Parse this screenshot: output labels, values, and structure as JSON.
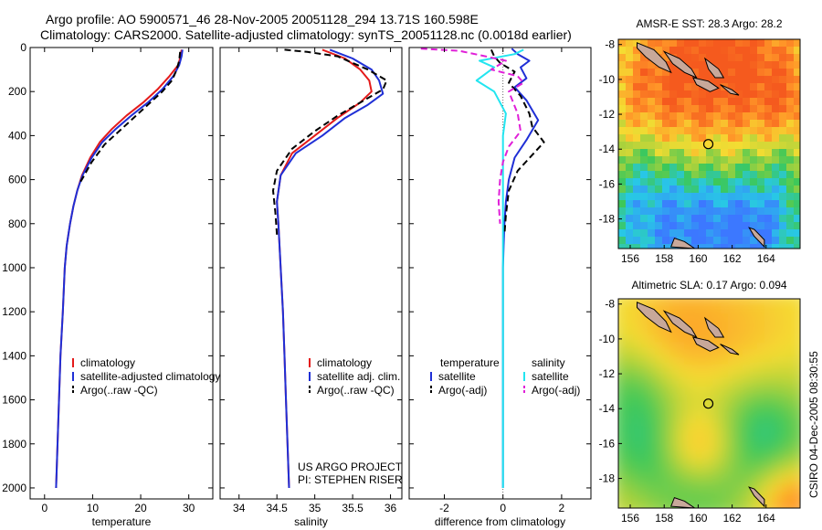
{
  "header": {
    "line1": "Argo profile: AO 5900571_46 28-Nov-2005 20051128_294 13.71S 160.598E",
    "line2": "Climatology: CARS2000. Satellite-adjusted climatology: synTS_20051128.nc (0.0018d earlier)"
  },
  "side_text": "CSIRO 04-Dec-2005 08:30:55",
  "colors": {
    "clim": "#e41a1a",
    "sat": "#1f2fd6",
    "argo": "#000000",
    "cyan": "#22e5f0",
    "magenta": "#e020d8"
  },
  "chart_data": [
    {
      "type": "line",
      "id": "temperature",
      "xlabel": "temperature",
      "xlim": [
        -3,
        35
      ],
      "xticks": [
        0,
        10,
        20,
        30
      ],
      "ylim": [
        2050,
        0
      ],
      "yticks": [
        0,
        200,
        400,
        600,
        800,
        1000,
        1200,
        1400,
        1600,
        1800,
        2000
      ],
      "legend": {
        "position": "lower-center",
        "entries": [
          "climatology",
          "satellite-adjusted climatology",
          "Argo(..raw -QC)"
        ]
      },
      "series": [
        {
          "name": "climatology",
          "color": "clim",
          "dash": false,
          "points": [
            [
              28.5,
              10
            ],
            [
              28.3,
              40
            ],
            [
              27.8,
              80
            ],
            [
              26.0,
              130
            ],
            [
              23.5,
              190
            ],
            [
              20.5,
              250
            ],
            [
              17.0,
              310
            ],
            [
              14.0,
              370
            ],
            [
              11.5,
              430
            ],
            [
              9.5,
              500
            ],
            [
              7.8,
              580
            ],
            [
              6.8,
              650
            ],
            [
              6.0,
              720
            ],
            [
              5.3,
              800
            ],
            [
              4.6,
              900
            ],
            [
              4.2,
              1000
            ],
            [
              3.8,
              1200
            ],
            [
              3.3,
              1400
            ],
            [
              3.0,
              1600
            ],
            [
              2.7,
              1800
            ],
            [
              2.4,
              2000
            ]
          ]
        },
        {
          "name": "satellite-adjusted climatology",
          "color": "sat",
          "dash": false,
          "points": [
            [
              28.7,
              10
            ],
            [
              28.5,
              40
            ],
            [
              28.0,
              80
            ],
            [
              26.8,
              130
            ],
            [
              24.5,
              190
            ],
            [
              21.5,
              250
            ],
            [
              18.0,
              310
            ],
            [
              14.8,
              370
            ],
            [
              12.0,
              430
            ],
            [
              9.8,
              500
            ],
            [
              7.9,
              580
            ],
            [
              6.8,
              650
            ],
            [
              6.0,
              720
            ],
            [
              5.3,
              800
            ],
            [
              4.6,
              900
            ],
            [
              4.2,
              1000
            ],
            [
              3.8,
              1200
            ],
            [
              3.3,
              1400
            ],
            [
              3.0,
              1600
            ],
            [
              2.7,
              1800
            ],
            [
              2.4,
              2000
            ]
          ]
        },
        {
          "name": "Argo(..raw -QC)",
          "color": "argo",
          "dash": true,
          "points": [
            [
              28.2,
              20
            ],
            [
              28.0,
              60
            ],
            [
              27.5,
              100
            ],
            [
              26.5,
              150
            ],
            [
              24.5,
              200
            ],
            [
              21.5,
              260
            ],
            [
              18.5,
              320
            ],
            [
              15.5,
              380
            ],
            [
              12.5,
              440
            ],
            [
              9.8,
              520
            ],
            [
              8.0,
              590
            ],
            [
              7.2,
              620
            ]
          ]
        }
      ]
    },
    {
      "type": "line",
      "id": "salinity",
      "xlabel": "salinity",
      "xlim": [
        33.75,
        36.15
      ],
      "xticks": [
        34,
        34.5,
        35,
        35.5,
        36
      ],
      "ylim": [
        2050,
        0
      ],
      "legend": {
        "position": "lower-center",
        "entries": [
          "climatology",
          "satellite adj. clim.",
          "Argo(..raw -QC)"
        ]
      },
      "annotation": [
        "US ARGO PROJECT",
        "PI: STEPHEN RISER"
      ],
      "series": [
        {
          "name": "climatology",
          "color": "clim",
          "dash": false,
          "points": [
            [
              35.1,
              10
            ],
            [
              35.4,
              50
            ],
            [
              35.6,
              100
            ],
            [
              35.72,
              150
            ],
            [
              35.75,
              200
            ],
            [
              35.6,
              250
            ],
            [
              35.3,
              320
            ],
            [
              35.0,
              400
            ],
            [
              34.7,
              480
            ],
            [
              34.55,
              580
            ],
            [
              34.5,
              700
            ],
            [
              34.52,
              800
            ],
            [
              34.55,
              1000
            ],
            [
              34.58,
              1200
            ],
            [
              34.6,
              1400
            ],
            [
              34.62,
              1600
            ],
            [
              34.64,
              1800
            ],
            [
              34.66,
              2000
            ]
          ]
        },
        {
          "name": "satellite adj. clim.",
          "color": "sat",
          "dash": false,
          "points": [
            [
              35.2,
              10
            ],
            [
              35.5,
              50
            ],
            [
              35.75,
              100
            ],
            [
              35.85,
              150
            ],
            [
              35.9,
              210
            ],
            [
              35.7,
              260
            ],
            [
              35.4,
              320
            ],
            [
              35.1,
              400
            ],
            [
              34.75,
              480
            ],
            [
              34.55,
              580
            ],
            [
              34.5,
              700
            ],
            [
              34.52,
              800
            ],
            [
              34.55,
              1000
            ],
            [
              34.58,
              1200
            ],
            [
              34.6,
              1400
            ],
            [
              34.62,
              1600
            ],
            [
              34.64,
              1800
            ],
            [
              34.66,
              2000
            ]
          ]
        },
        {
          "name": "Argo(..raw -QC)",
          "color": "argo",
          "dash": true,
          "points": [
            [
              34.6,
              10
            ],
            [
              34.9,
              20
            ],
            [
              35.3,
              40
            ],
            [
              35.5,
              70
            ],
            [
              35.7,
              100
            ],
            [
              35.95,
              150
            ],
            [
              35.9,
              190
            ],
            [
              35.6,
              250
            ],
            [
              35.3,
              310
            ],
            [
              35.0,
              380
            ],
            [
              34.7,
              460
            ],
            [
              34.5,
              560
            ],
            [
              34.45,
              650
            ],
            [
              34.48,
              750
            ],
            [
              34.5,
              850
            ]
          ]
        }
      ]
    },
    {
      "type": "line",
      "id": "difference",
      "xlabel": "difference from climatology",
      "xlim": [
        -3.2,
        3.0
      ],
      "xticks": [
        -2,
        0,
        2
      ],
      "ylim": [
        2050,
        0
      ],
      "legend": {
        "position": "lower-center",
        "columns": [
          {
            "title": "temperature",
            "entries": [
              {
                "label": "satellite",
                "color": "sat",
                "dash": false
              },
              {
                "label": "Argo(-adj)",
                "color": "argo",
                "dash": true
              }
            ]
          },
          {
            "title": "salinity",
            "entries": [
              {
                "label": "satellite",
                "color": "cyan",
                "dash": false
              },
              {
                "label": "Argo(-adj)",
                "color": "magenta",
                "dash": true
              }
            ]
          }
        ]
      },
      "series": [
        {
          "name": "temperature satellite",
          "color": "sat",
          "dash": false,
          "points": [
            [
              0.3,
              5
            ],
            [
              0.5,
              30
            ],
            [
              0.9,
              60
            ],
            [
              0.6,
              90
            ],
            [
              0.8,
              140
            ],
            [
              0.4,
              180
            ],
            [
              0.8,
              240
            ],
            [
              1.2,
              330
            ],
            [
              0.8,
              420
            ],
            [
              0.4,
              500
            ],
            [
              0.2,
              600
            ],
            [
              0.1,
              700
            ],
            [
              0.05,
              800
            ],
            [
              0.02,
              900
            ],
            [
              0.0,
              1000
            ],
            [
              0.0,
              2000
            ]
          ]
        },
        {
          "name": "temperature Argo(-adj)",
          "color": "argo",
          "dash": true,
          "points": [
            [
              -0.4,
              10
            ],
            [
              -0.3,
              40
            ],
            [
              -0.1,
              70
            ],
            [
              0.4,
              110
            ],
            [
              0.2,
              160
            ],
            [
              0.6,
              220
            ],
            [
              0.9,
              300
            ],
            [
              1.0,
              360
            ],
            [
              1.4,
              430
            ],
            [
              0.5,
              560
            ],
            [
              0.2,
              650
            ],
            [
              0.1,
              760
            ],
            [
              0.05,
              850
            ]
          ]
        },
        {
          "name": "salinity satellite",
          "color": "cyan",
          "dash": false,
          "points": [
            [
              0.7,
              10
            ],
            [
              0.4,
              30
            ],
            [
              -0.8,
              60
            ],
            [
              -0.3,
              90
            ],
            [
              -0.9,
              150
            ],
            [
              -0.3,
              200
            ],
            [
              0.1,
              300
            ],
            [
              0.0,
              400
            ],
            [
              0.0,
              600
            ],
            [
              0.0,
              1000
            ],
            [
              0.0,
              2000
            ]
          ]
        },
        {
          "name": "salinity Argo(-adj)",
          "color": "magenta",
          "dash": true,
          "points": [
            [
              -2.8,
              5
            ],
            [
              -1.5,
              15
            ],
            [
              -0.6,
              40
            ],
            [
              0.1,
              60
            ],
            [
              -0.4,
              100
            ],
            [
              0.5,
              130
            ],
            [
              0.7,
              160
            ],
            [
              0.2,
              200
            ],
            [
              0.5,
              300
            ],
            [
              0.6,
              380
            ],
            [
              0.2,
              450
            ],
            [
              0.0,
              520
            ],
            [
              -0.1,
              600
            ],
            [
              -0.15,
              700
            ],
            [
              -0.1,
              800
            ]
          ]
        }
      ]
    },
    {
      "type": "heatmap",
      "id": "sst-map",
      "title": "AMSR-E SST: 28.3 Argo: 28.2",
      "xlim": [
        155.3,
        166.0
      ],
      "xticks": [
        156,
        158,
        160,
        162,
        164
      ],
      "ylim": [
        -19.7,
        -7.7
      ],
      "yticks": [
        -8,
        -10,
        -12,
        -14,
        -16,
        -18
      ],
      "marker": [
        160.598,
        -13.71
      ]
    },
    {
      "type": "heatmap",
      "id": "sla-map",
      "title": "Altimetric SLA: 0.17 Argo: 0.094",
      "xlim": [
        155.3,
        166.0
      ],
      "xticks": [
        156,
        158,
        160,
        162,
        164
      ],
      "ylim": [
        -19.7,
        -7.7
      ],
      "yticks": [
        -8,
        -10,
        -12,
        -14,
        -16,
        -18
      ],
      "marker": [
        160.598,
        -13.71
      ]
    }
  ]
}
